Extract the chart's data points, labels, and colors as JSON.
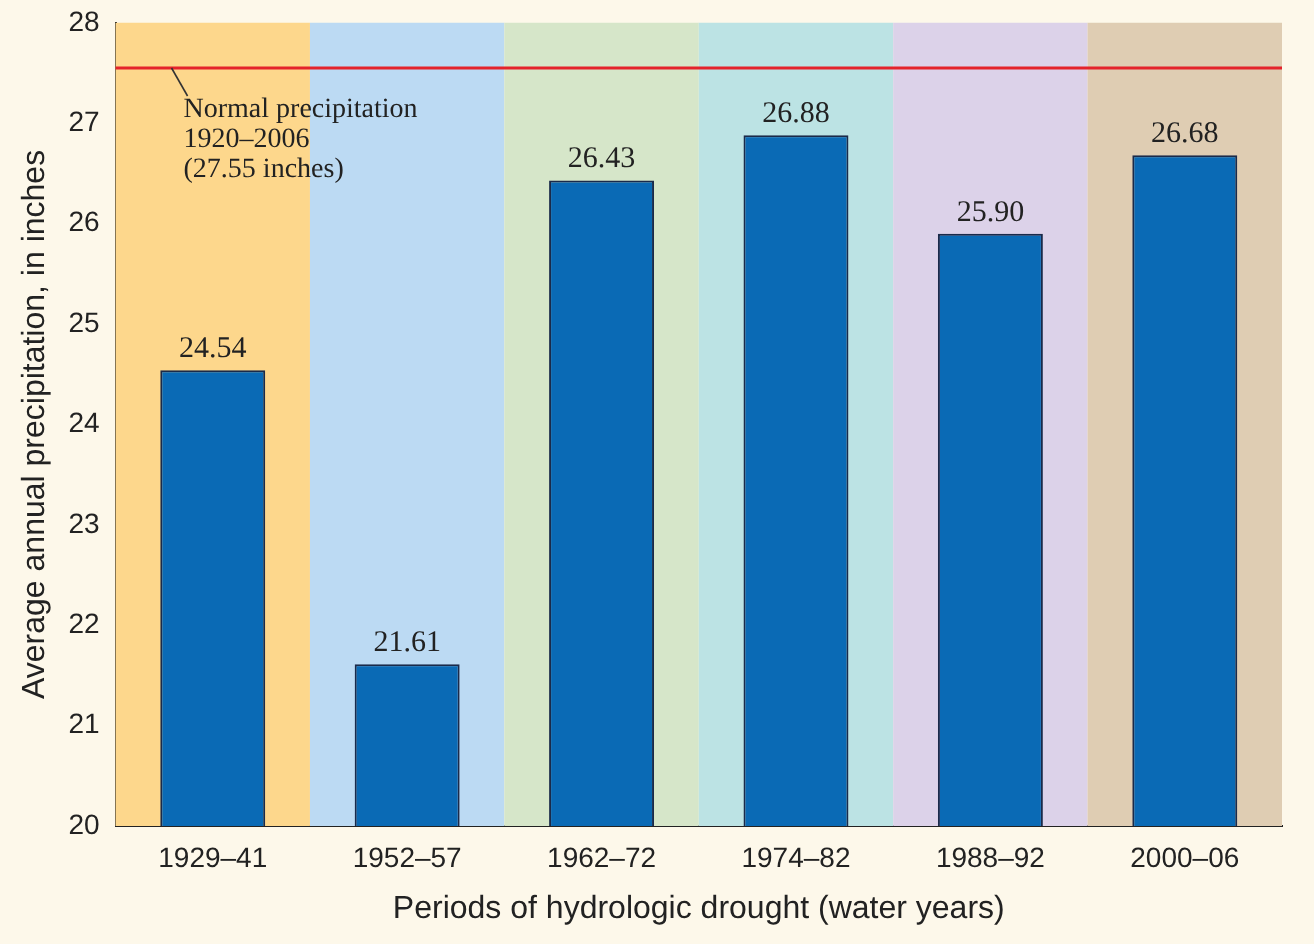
{
  "chart_data": {
    "type": "bar",
    "xlabel": "Periods of hydrologic drought (water years)",
    "ylabel": "Average annual precipitation, in inches",
    "categories": [
      "1929–41",
      "1952–57",
      "1962–72",
      "1974–82",
      "1988–92",
      "2000–06"
    ],
    "values": [
      24.54,
      21.61,
      26.43,
      26.88,
      25.9,
      26.68
    ],
    "value_labels": [
      "24.54",
      "21.61",
      "26.43",
      "26.88",
      "25.90",
      "26.68"
    ],
    "color": "#0a6ab5",
    "ylim": [
      20,
      28
    ],
    "yticks": [
      20,
      21,
      22,
      23,
      24,
      25,
      26,
      27,
      28
    ],
    "grid": false,
    "legend": false,
    "bands": [
      {
        "axis": "x",
        "from": "1929–41",
        "to": "1929–41",
        "color": "#fdd78c"
      },
      {
        "axis": "x",
        "from": "1952–57",
        "to": "1952–57",
        "color": "#bcdaf3"
      },
      {
        "axis": "x",
        "from": "1962–72",
        "to": "1962–72",
        "color": "#d6e6c9"
      },
      {
        "axis": "x",
        "from": "1974–82",
        "to": "1974–82",
        "color": "#bce3e4"
      },
      {
        "axis": "x",
        "from": "1988–92",
        "to": "1988–92",
        "color": "#dcd2e9"
      },
      {
        "axis": "x",
        "from": "2000–06",
        "to": "2000–06",
        "color": "#dfcdb3"
      }
    ],
    "ref_lines": [
      {
        "axis": "y",
        "value": 27.55,
        "label": "Normal precipitation\n1920–2006\n(27.55 inches)",
        "color": "#e4232b"
      }
    ]
  }
}
